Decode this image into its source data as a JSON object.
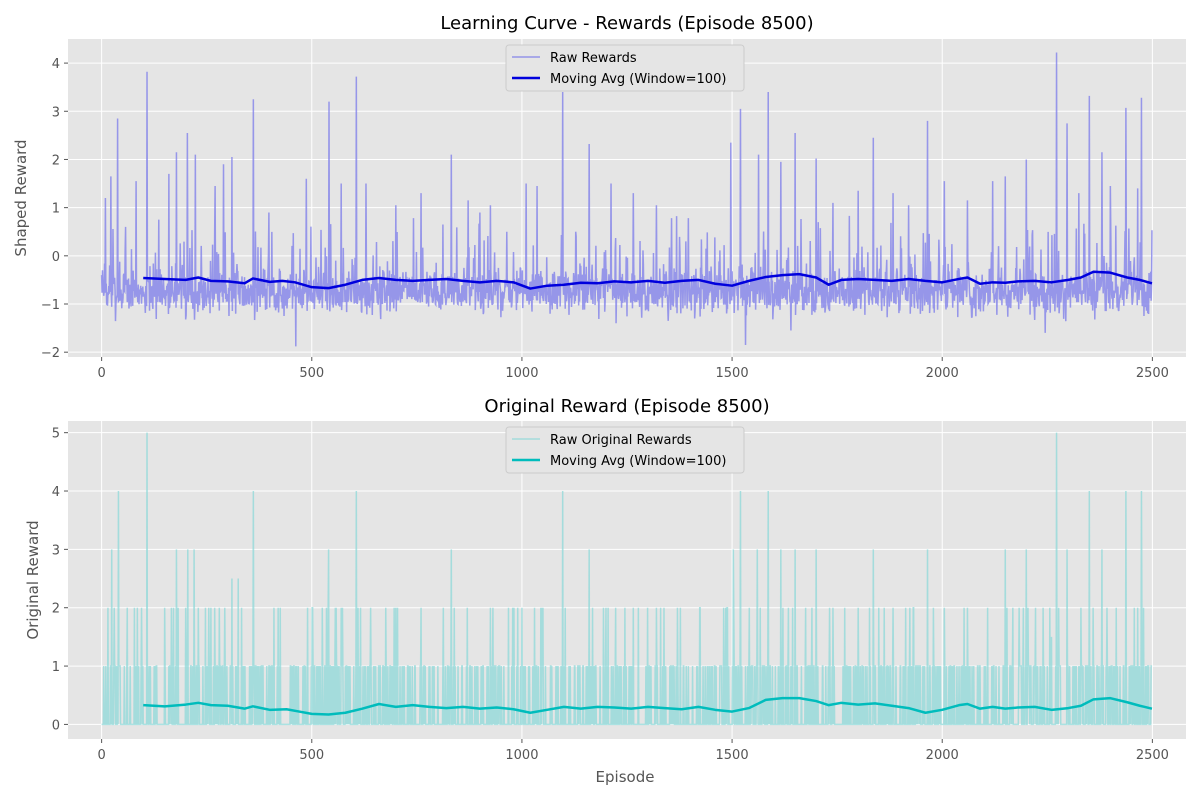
{
  "chart_data": [
    {
      "type": "line",
      "title": "Learning Curve - Rewards (Episode 8500)",
      "xlabel": "",
      "ylabel": "Shaped Reward",
      "xlim": [
        -80,
        2580
      ],
      "ylim": [
        -2.1,
        4.5
      ],
      "xticks": [
        0,
        500,
        1000,
        1500,
        2000,
        2500
      ],
      "yticks": [
        -2,
        -1,
        0,
        1,
        2,
        3,
        4
      ],
      "grid": true,
      "legend": "upper center",
      "colors": {
        "raw": "#7b7bea",
        "avg": "#0000dd"
      },
      "raw_style": {
        "mode": "signed",
        "base": -0.75,
        "spread": 0.35,
        "floor": -1.4,
        "ceiling": 4.3,
        "seed": 7
      },
      "series": [
        {
          "name": "Raw Rewards",
          "role": "raw",
          "x_range": [
            0,
            2499
          ],
          "peaks": [
            [
              0,
              -0.4
            ],
            [
              9,
              1.2
            ],
            [
              22,
              1.65
            ],
            [
              38,
              2.85
            ],
            [
              57,
              0.6
            ],
            [
              82,
              1.55
            ],
            [
              108,
              3.82
            ],
            [
              136,
              0.75
            ],
            [
              160,
              1.7
            ],
            [
              178,
              2.15
            ],
            [
              204,
              2.55
            ],
            [
              223,
              2.1
            ],
            [
              270,
              1.45
            ],
            [
              290,
              1.9
            ],
            [
              310,
              2.05
            ],
            [
              361,
              3.25
            ],
            [
              398,
              0.9
            ],
            [
              434,
              -1.25
            ],
            [
              462,
              -1.88
            ],
            [
              487,
              1.6
            ],
            [
              541,
              3.2
            ],
            [
              570,
              1.5
            ],
            [
              606,
              3.72
            ],
            [
              629,
              1.5
            ],
            [
              700,
              1.05
            ],
            [
              760,
              1.3
            ],
            [
              832,
              2.1
            ],
            [
              872,
              1.15
            ],
            [
              900,
              0.9
            ],
            [
              925,
              1.05
            ],
            [
              964,
              0.5
            ],
            [
              1010,
              1.5
            ],
            [
              1036,
              1.45
            ],
            [
              1097,
              3.4
            ],
            [
              1160,
              2.32
            ],
            [
              1212,
              1.5
            ],
            [
              1265,
              1.3
            ],
            [
              1320,
              1.05
            ],
            [
              1348,
              -1.35
            ],
            [
              1390,
              0.3
            ],
            [
              1438,
              0.15
            ],
            [
              1497,
              2.35
            ],
            [
              1520,
              3.05
            ],
            [
              1532,
              -1.85
            ],
            [
              1563,
              2.1
            ],
            [
              1586,
              3.4
            ],
            [
              1616,
              1.95
            ],
            [
              1640,
              -1.55
            ],
            [
              1650,
              2.55
            ],
            [
              1700,
              2.02
            ],
            [
              1740,
              1.1
            ],
            [
              1800,
              1.35
            ],
            [
              1836,
              2.45
            ],
            [
              1883,
              1.3
            ],
            [
              1920,
              1.05
            ],
            [
              1965,
              2.8
            ],
            [
              2005,
              1.55
            ],
            [
              2060,
              1.15
            ],
            [
              2120,
              1.55
            ],
            [
              2150,
              1.65
            ],
            [
              2200,
              2.0
            ],
            [
              2245,
              -1.6
            ],
            [
              2272,
              4.22
            ],
            [
              2297,
              2.75
            ],
            [
              2325,
              1.3
            ],
            [
              2350,
              3.32
            ],
            [
              2380,
              2.15
            ],
            [
              2400,
              1.45
            ],
            [
              2437,
              3.07
            ],
            [
              2465,
              1.4
            ],
            [
              2474,
              3.28
            ],
            [
              2480,
              -1.25
            ],
            [
              2499,
              0.53
            ]
          ]
        },
        {
          "name": "Moving Avg (Window=100)",
          "role": "avg",
          "x": [
            99,
            150,
            200,
            230,
            260,
            300,
            340,
            360,
            400,
            430,
            460,
            500,
            540,
            580,
            620,
            660,
            700,
            740,
            780,
            820,
            860,
            900,
            940,
            980,
            1020,
            1060,
            1100,
            1140,
            1180,
            1220,
            1260,
            1300,
            1340,
            1380,
            1420,
            1460,
            1500,
            1540,
            1580,
            1620,
            1660,
            1700,
            1730,
            1760,
            1800,
            1840,
            1880,
            1920,
            1960,
            2000,
            2040,
            2060,
            2090,
            2120,
            2150,
            2180,
            2220,
            2260,
            2300,
            2330,
            2360,
            2400,
            2440,
            2470,
            2499
          ],
          "y": [
            -0.46,
            -0.48,
            -0.5,
            -0.45,
            -0.52,
            -0.53,
            -0.57,
            -0.47,
            -0.54,
            -0.52,
            -0.55,
            -0.65,
            -0.67,
            -0.6,
            -0.5,
            -0.46,
            -0.5,
            -0.52,
            -0.5,
            -0.48,
            -0.52,
            -0.55,
            -0.52,
            -0.55,
            -0.68,
            -0.62,
            -0.6,
            -0.56,
            -0.57,
            -0.53,
            -0.55,
            -0.52,
            -0.56,
            -0.52,
            -0.5,
            -0.58,
            -0.62,
            -0.52,
            -0.44,
            -0.4,
            -0.38,
            -0.45,
            -0.6,
            -0.5,
            -0.48,
            -0.5,
            -0.52,
            -0.48,
            -0.52,
            -0.55,
            -0.48,
            -0.45,
            -0.58,
            -0.55,
            -0.56,
            -0.53,
            -0.52,
            -0.55,
            -0.5,
            -0.45,
            -0.33,
            -0.35,
            -0.45,
            -0.5,
            -0.57
          ]
        }
      ]
    },
    {
      "type": "line",
      "title": "Original Reward (Episode 8500)",
      "xlabel": "Episode",
      "ylabel": "Original Reward",
      "xlim": [
        -80,
        2580
      ],
      "ylim": [
        -0.25,
        5.2
      ],
      "xticks": [
        0,
        500,
        1000,
        1500,
        2000,
        2500
      ],
      "yticks": [
        0,
        1,
        2,
        3,
        4,
        5
      ],
      "grid": true,
      "legend": "upper center",
      "colors": {
        "raw": "#8ed8d8",
        "avg": "#00bcbc"
      },
      "raw_style": {
        "mode": "positive",
        "base": 0,
        "spread": 1.0,
        "floor": 0,
        "ceiling": 5,
        "seed": 11
      },
      "series": [
        {
          "name": "Raw Original Rewards",
          "role": "raw",
          "x_range": [
            0,
            2499
          ],
          "peaks": [
            [
              0,
              0
            ],
            [
              10,
              1
            ],
            [
              15,
              2
            ],
            [
              24,
              3
            ],
            [
              30,
              2
            ],
            [
              40,
              4
            ],
            [
              60,
              1
            ],
            [
              85,
              2
            ],
            [
              95,
              2
            ],
            [
              108,
              5
            ],
            [
              150,
              2
            ],
            [
              178,
              3
            ],
            [
              205,
              3
            ],
            [
              220,
              3
            ],
            [
              255,
              2
            ],
            [
              280,
              2
            ],
            [
              310,
              2.5
            ],
            [
              325,
              2.5
            ],
            [
              361,
              4
            ],
            [
              420,
              2
            ],
            [
              490,
              2
            ],
            [
              540,
              3
            ],
            [
              570,
              2
            ],
            [
              606,
              4
            ],
            [
              640,
              2
            ],
            [
              700,
              2
            ],
            [
              760,
              2
            ],
            [
              832,
              3
            ],
            [
              870,
              2
            ],
            [
              925,
              2
            ],
            [
              1000,
              2
            ],
            [
              1030,
              2
            ],
            [
              1097,
              4
            ],
            [
              1160,
              3
            ],
            [
              1200,
              2
            ],
            [
              1265,
              2
            ],
            [
              1320,
              2
            ],
            [
              1370,
              2
            ],
            [
              1480,
              2
            ],
            [
              1503,
              3
            ],
            [
              1520,
              4
            ],
            [
              1560,
              3
            ],
            [
              1586,
              4
            ],
            [
              1616,
              3
            ],
            [
              1650,
              3
            ],
            [
              1700,
              3
            ],
            [
              1740,
              2
            ],
            [
              1800,
              2
            ],
            [
              1836,
              3
            ],
            [
              1883,
              2
            ],
            [
              1965,
              3
            ],
            [
              2005,
              2
            ],
            [
              2060,
              2
            ],
            [
              2150,
              3
            ],
            [
              2200,
              3
            ],
            [
              2240,
              2
            ],
            [
              2260,
              1.5
            ],
            [
              2272,
              5
            ],
            [
              2297,
              3
            ],
            [
              2330,
              2
            ],
            [
              2350,
              4
            ],
            [
              2380,
              3
            ],
            [
              2437,
              4
            ],
            [
              2465,
              2
            ],
            [
              2474,
              4
            ],
            [
              2499,
              1
            ]
          ]
        },
        {
          "name": "Moving Avg (Window=100)",
          "role": "avg",
          "x": [
            99,
            150,
            200,
            230,
            260,
            300,
            340,
            360,
            400,
            440,
            470,
            500,
            540,
            580,
            620,
            660,
            700,
            740,
            780,
            820,
            860,
            900,
            940,
            980,
            1020,
            1060,
            1100,
            1140,
            1180,
            1220,
            1260,
            1300,
            1340,
            1380,
            1420,
            1460,
            1500,
            1540,
            1580,
            1620,
            1660,
            1700,
            1730,
            1760,
            1800,
            1840,
            1880,
            1920,
            1960,
            2000,
            2040,
            2060,
            2090,
            2120,
            2150,
            2180,
            2220,
            2260,
            2300,
            2330,
            2360,
            2400,
            2440,
            2470,
            2499
          ],
          "y": [
            0.33,
            0.31,
            0.34,
            0.37,
            0.33,
            0.32,
            0.27,
            0.31,
            0.25,
            0.26,
            0.22,
            0.18,
            0.17,
            0.2,
            0.27,
            0.35,
            0.3,
            0.33,
            0.3,
            0.28,
            0.3,
            0.27,
            0.29,
            0.26,
            0.2,
            0.25,
            0.3,
            0.27,
            0.3,
            0.29,
            0.27,
            0.3,
            0.28,
            0.26,
            0.3,
            0.25,
            0.22,
            0.28,
            0.42,
            0.45,
            0.45,
            0.4,
            0.33,
            0.37,
            0.34,
            0.36,
            0.32,
            0.28,
            0.2,
            0.25,
            0.33,
            0.35,
            0.27,
            0.3,
            0.27,
            0.29,
            0.3,
            0.25,
            0.28,
            0.32,
            0.43,
            0.45,
            0.38,
            0.32,
            0.27
          ]
        }
      ]
    }
  ]
}
